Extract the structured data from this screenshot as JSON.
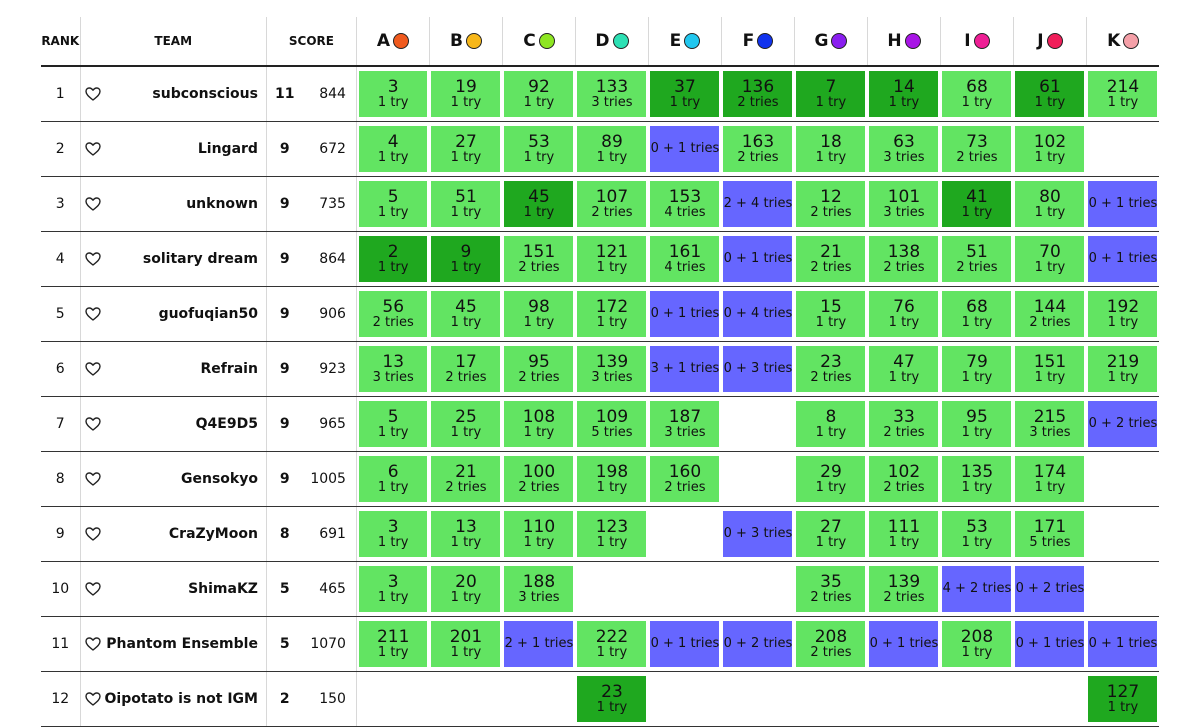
{
  "headers": {
    "rank": "RANK",
    "team": "TEAM",
    "score": "SCORE"
  },
  "status_colors": {
    "solved": "#62e462",
    "first_solve": "#1fa81f",
    "attempted": "#6666ff"
  },
  "problems": [
    {
      "letter": "A",
      "color": "#f05a1e"
    },
    {
      "letter": "B",
      "color": "#f7b71a"
    },
    {
      "letter": "C",
      "color": "#8ee622"
    },
    {
      "letter": "D",
      "color": "#2de0b4"
    },
    {
      "letter": "E",
      "color": "#22c7ef"
    },
    {
      "letter": "F",
      "color": "#1133ee"
    },
    {
      "letter": "G",
      "color": "#8a1ef0"
    },
    {
      "letter": "H",
      "color": "#a815e6"
    },
    {
      "letter": "I",
      "color": "#ee1f95"
    },
    {
      "letter": "J",
      "color": "#f01e5a"
    },
    {
      "letter": "K",
      "color": "#f5a0a8"
    }
  ],
  "rows": [
    {
      "rank": "1",
      "team": "subconscious",
      "solved": "11",
      "penalty": "844",
      "cells": [
        {
          "s": "ok",
          "t": "3",
          "r": "1 try"
        },
        {
          "s": "ok",
          "t": "19",
          "r": "1 try"
        },
        {
          "s": "ok",
          "t": "92",
          "r": "1 try"
        },
        {
          "s": "ok",
          "t": "133",
          "r": "3 tries"
        },
        {
          "s": "first",
          "t": "37",
          "r": "1 try"
        },
        {
          "s": "first",
          "t": "136",
          "r": "2 tries"
        },
        {
          "s": "first",
          "t": "7",
          "r": "1 try"
        },
        {
          "s": "first",
          "t": "14",
          "r": "1 try"
        },
        {
          "s": "ok",
          "t": "68",
          "r": "1 try"
        },
        {
          "s": "first",
          "t": "61",
          "r": "1 try"
        },
        {
          "s": "ok",
          "t": "214",
          "r": "1 try"
        }
      ]
    },
    {
      "rank": "2",
      "team": "Lingard",
      "solved": "9",
      "penalty": "672",
      "cells": [
        {
          "s": "ok",
          "t": "4",
          "r": "1 try"
        },
        {
          "s": "ok",
          "t": "27",
          "r": "1 try"
        },
        {
          "s": "ok",
          "t": "53",
          "r": "1 try"
        },
        {
          "s": "ok",
          "t": "89",
          "r": "1 try"
        },
        {
          "s": "fail",
          "t": "",
          "r": "0 + 1 tries"
        },
        {
          "s": "ok",
          "t": "163",
          "r": "2 tries"
        },
        {
          "s": "ok",
          "t": "18",
          "r": "1 try"
        },
        {
          "s": "ok",
          "t": "63",
          "r": "3 tries"
        },
        {
          "s": "ok",
          "t": "73",
          "r": "2 tries"
        },
        {
          "s": "ok",
          "t": "102",
          "r": "1 try"
        },
        {
          "s": "none",
          "t": "",
          "r": ""
        }
      ]
    },
    {
      "rank": "3",
      "team": "unknown",
      "solved": "9",
      "penalty": "735",
      "cells": [
        {
          "s": "ok",
          "t": "5",
          "r": "1 try"
        },
        {
          "s": "ok",
          "t": "51",
          "r": "1 try"
        },
        {
          "s": "first",
          "t": "45",
          "r": "1 try"
        },
        {
          "s": "ok",
          "t": "107",
          "r": "2 tries"
        },
        {
          "s": "ok",
          "t": "153",
          "r": "4 tries"
        },
        {
          "s": "fail",
          "t": "",
          "r": "2 + 4 tries"
        },
        {
          "s": "ok",
          "t": "12",
          "r": "2 tries"
        },
        {
          "s": "ok",
          "t": "101",
          "r": "3 tries"
        },
        {
          "s": "first",
          "t": "41",
          "r": "1 try"
        },
        {
          "s": "ok",
          "t": "80",
          "r": "1 try"
        },
        {
          "s": "fail",
          "t": "",
          "r": "0 + 1 tries"
        }
      ]
    },
    {
      "rank": "4",
      "team": "solitary dream",
      "solved": "9",
      "penalty": "864",
      "cells": [
        {
          "s": "first",
          "t": "2",
          "r": "1 try"
        },
        {
          "s": "first",
          "t": "9",
          "r": "1 try"
        },
        {
          "s": "ok",
          "t": "151",
          "r": "2 tries"
        },
        {
          "s": "ok",
          "t": "121",
          "r": "1 try"
        },
        {
          "s": "ok",
          "t": "161",
          "r": "4 tries"
        },
        {
          "s": "fail",
          "t": "",
          "r": "0 + 1 tries"
        },
        {
          "s": "ok",
          "t": "21",
          "r": "2 tries"
        },
        {
          "s": "ok",
          "t": "138",
          "r": "2 tries"
        },
        {
          "s": "ok",
          "t": "51",
          "r": "2 tries"
        },
        {
          "s": "ok",
          "t": "70",
          "r": "1 try"
        },
        {
          "s": "fail",
          "t": "",
          "r": "0 + 1 tries"
        }
      ]
    },
    {
      "rank": "5",
      "team": "guofuqian50",
      "solved": "9",
      "penalty": "906",
      "cells": [
        {
          "s": "ok",
          "t": "56",
          "r": "2 tries"
        },
        {
          "s": "ok",
          "t": "45",
          "r": "1 try"
        },
        {
          "s": "ok",
          "t": "98",
          "r": "1 try"
        },
        {
          "s": "ok",
          "t": "172",
          "r": "1 try"
        },
        {
          "s": "fail",
          "t": "",
          "r": "0 + 1 tries"
        },
        {
          "s": "fail",
          "t": "",
          "r": "0 + 4 tries"
        },
        {
          "s": "ok",
          "t": "15",
          "r": "1 try"
        },
        {
          "s": "ok",
          "t": "76",
          "r": "1 try"
        },
        {
          "s": "ok",
          "t": "68",
          "r": "1 try"
        },
        {
          "s": "ok",
          "t": "144",
          "r": "2 tries"
        },
        {
          "s": "ok",
          "t": "192",
          "r": "1 try"
        }
      ]
    },
    {
      "rank": "6",
      "team": "Refrain",
      "solved": "9",
      "penalty": "923",
      "cells": [
        {
          "s": "ok",
          "t": "13",
          "r": "3 tries"
        },
        {
          "s": "ok",
          "t": "17",
          "r": "2 tries"
        },
        {
          "s": "ok",
          "t": "95",
          "r": "2 tries"
        },
        {
          "s": "ok",
          "t": "139",
          "r": "3 tries"
        },
        {
          "s": "fail",
          "t": "",
          "r": "3 + 1 tries"
        },
        {
          "s": "fail",
          "t": "",
          "r": "0 + 3 tries"
        },
        {
          "s": "ok",
          "t": "23",
          "r": "2 tries"
        },
        {
          "s": "ok",
          "t": "47",
          "r": "1 try"
        },
        {
          "s": "ok",
          "t": "79",
          "r": "1 try"
        },
        {
          "s": "ok",
          "t": "151",
          "r": "1 try"
        },
        {
          "s": "ok",
          "t": "219",
          "r": "1 try"
        }
      ]
    },
    {
      "rank": "7",
      "team": "Q4E9D5",
      "solved": "9",
      "penalty": "965",
      "cells": [
        {
          "s": "ok",
          "t": "5",
          "r": "1 try"
        },
        {
          "s": "ok",
          "t": "25",
          "r": "1 try"
        },
        {
          "s": "ok",
          "t": "108",
          "r": "1 try"
        },
        {
          "s": "ok",
          "t": "109",
          "r": "5 tries"
        },
        {
          "s": "ok",
          "t": "187",
          "r": "3 tries"
        },
        {
          "s": "none",
          "t": "",
          "r": ""
        },
        {
          "s": "ok",
          "t": "8",
          "r": "1 try"
        },
        {
          "s": "ok",
          "t": "33",
          "r": "2 tries"
        },
        {
          "s": "ok",
          "t": "95",
          "r": "1 try"
        },
        {
          "s": "ok",
          "t": "215",
          "r": "3 tries"
        },
        {
          "s": "fail",
          "t": "",
          "r": "0 + 2 tries"
        }
      ]
    },
    {
      "rank": "8",
      "team": "Gensokyo",
      "solved": "9",
      "penalty": "1005",
      "cells": [
        {
          "s": "ok",
          "t": "6",
          "r": "1 try"
        },
        {
          "s": "ok",
          "t": "21",
          "r": "2 tries"
        },
        {
          "s": "ok",
          "t": "100",
          "r": "2 tries"
        },
        {
          "s": "ok",
          "t": "198",
          "r": "1 try"
        },
        {
          "s": "ok",
          "t": "160",
          "r": "2 tries"
        },
        {
          "s": "none",
          "t": "",
          "r": ""
        },
        {
          "s": "ok",
          "t": "29",
          "r": "1 try"
        },
        {
          "s": "ok",
          "t": "102",
          "r": "2 tries"
        },
        {
          "s": "ok",
          "t": "135",
          "r": "1 try"
        },
        {
          "s": "ok",
          "t": "174",
          "r": "1 try"
        },
        {
          "s": "none",
          "t": "",
          "r": ""
        }
      ]
    },
    {
      "rank": "9",
      "team": "CraZyMoon",
      "solved": "8",
      "penalty": "691",
      "cells": [
        {
          "s": "ok",
          "t": "3",
          "r": "1 try"
        },
        {
          "s": "ok",
          "t": "13",
          "r": "1 try"
        },
        {
          "s": "ok",
          "t": "110",
          "r": "1 try"
        },
        {
          "s": "ok",
          "t": "123",
          "r": "1 try"
        },
        {
          "s": "none",
          "t": "",
          "r": ""
        },
        {
          "s": "fail",
          "t": "",
          "r": "0 + 3 tries"
        },
        {
          "s": "ok",
          "t": "27",
          "r": "1 try"
        },
        {
          "s": "ok",
          "t": "111",
          "r": "1 try"
        },
        {
          "s": "ok",
          "t": "53",
          "r": "1 try"
        },
        {
          "s": "ok",
          "t": "171",
          "r": "5 tries"
        },
        {
          "s": "none",
          "t": "",
          "r": ""
        }
      ]
    },
    {
      "rank": "10",
      "team": "ShimaKZ",
      "solved": "5",
      "penalty": "465",
      "cells": [
        {
          "s": "ok",
          "t": "3",
          "r": "1 try"
        },
        {
          "s": "ok",
          "t": "20",
          "r": "1 try"
        },
        {
          "s": "ok",
          "t": "188",
          "r": "3 tries"
        },
        {
          "s": "none",
          "t": "",
          "r": ""
        },
        {
          "s": "none",
          "t": "",
          "r": ""
        },
        {
          "s": "none",
          "t": "",
          "r": ""
        },
        {
          "s": "ok",
          "t": "35",
          "r": "2 tries"
        },
        {
          "s": "ok",
          "t": "139",
          "r": "2 tries"
        },
        {
          "s": "fail",
          "t": "",
          "r": "4 + 2 tries"
        },
        {
          "s": "fail",
          "t": "",
          "r": "0 + 2 tries"
        },
        {
          "s": "none",
          "t": "",
          "r": ""
        }
      ]
    },
    {
      "rank": "11",
      "team": "Phantom Ensemble",
      "solved": "5",
      "penalty": "1070",
      "cells": [
        {
          "s": "ok",
          "t": "211",
          "r": "1 try"
        },
        {
          "s": "ok",
          "t": "201",
          "r": "1 try"
        },
        {
          "s": "fail",
          "t": "",
          "r": "2 + 1 tries"
        },
        {
          "s": "ok",
          "t": "222",
          "r": "1 try"
        },
        {
          "s": "fail",
          "t": "",
          "r": "0 + 1 tries"
        },
        {
          "s": "fail",
          "t": "",
          "r": "0 + 2 tries"
        },
        {
          "s": "ok",
          "t": "208",
          "r": "2 tries"
        },
        {
          "s": "fail",
          "t": "",
          "r": "0 + 1 tries"
        },
        {
          "s": "ok",
          "t": "208",
          "r": "1 try"
        },
        {
          "s": "fail",
          "t": "",
          "r": "0 + 1 tries"
        },
        {
          "s": "fail",
          "t": "",
          "r": "0 + 1 tries"
        }
      ]
    },
    {
      "rank": "12",
      "team": "Oipotato is not IGM",
      "solved": "2",
      "penalty": "150",
      "cells": [
        {
          "s": "none",
          "t": "",
          "r": ""
        },
        {
          "s": "none",
          "t": "",
          "r": ""
        },
        {
          "s": "none",
          "t": "",
          "r": ""
        },
        {
          "s": "first",
          "t": "23",
          "r": "1 try"
        },
        {
          "s": "none",
          "t": "",
          "r": ""
        },
        {
          "s": "none",
          "t": "",
          "r": ""
        },
        {
          "s": "none",
          "t": "",
          "r": ""
        },
        {
          "s": "none",
          "t": "",
          "r": ""
        },
        {
          "s": "none",
          "t": "",
          "r": ""
        },
        {
          "s": "none",
          "t": "",
          "r": ""
        },
        {
          "s": "first",
          "t": "127",
          "r": "1 try"
        }
      ]
    }
  ]
}
